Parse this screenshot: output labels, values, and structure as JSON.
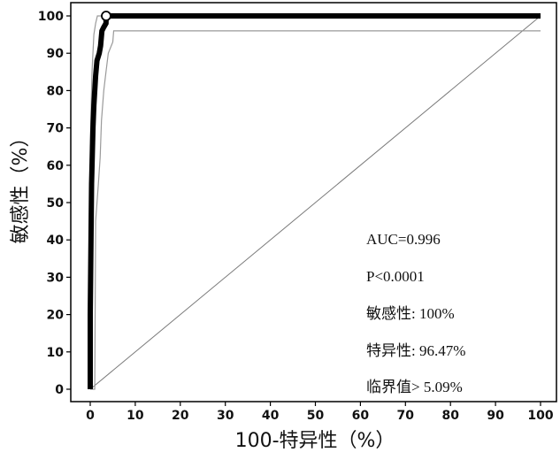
{
  "chart_data": {
    "type": "line",
    "title": "",
    "xlabel": "100-特异性（%）",
    "ylabel": "敏感性（%）",
    "xlim": [
      0,
      100
    ],
    "ylim": [
      0,
      100
    ],
    "x_ticks": [
      0,
      10,
      20,
      30,
      40,
      50,
      60,
      70,
      80,
      90,
      100
    ],
    "y_ticks": [
      0,
      10,
      20,
      30,
      40,
      50,
      60,
      70,
      80,
      90,
      100
    ],
    "grid": false,
    "series": [
      {
        "role": "roc-curve",
        "points": [
          [
            0,
            0
          ],
          [
            0,
            20
          ],
          [
            0.3,
            55
          ],
          [
            0.6,
            70
          ],
          [
            0.8,
            76
          ],
          [
            1,
            80
          ],
          [
            1.2,
            84
          ],
          [
            1.5,
            88
          ],
          [
            2,
            90
          ],
          [
            2.3,
            92
          ],
          [
            2.6,
            96
          ],
          [
            3,
            97
          ],
          [
            3.5,
            98
          ],
          [
            3.53,
            100
          ],
          [
            100,
            100
          ]
        ]
      },
      {
        "role": "ci-upper",
        "points": [
          [
            0,
            0
          ],
          [
            0,
            65
          ],
          [
            0.4,
            85
          ],
          [
            0.8,
            95
          ],
          [
            1.2,
            98
          ],
          [
            1.6,
            100
          ],
          [
            100,
            100
          ]
        ]
      },
      {
        "role": "ci-lower",
        "points": [
          [
            0,
            0
          ],
          [
            1,
            0
          ],
          [
            1.2,
            45
          ],
          [
            1.8,
            55
          ],
          [
            2.2,
            62
          ],
          [
            2.5,
            72
          ],
          [
            3,
            80
          ],
          [
            3.5,
            85
          ],
          [
            4,
            90
          ],
          [
            5,
            93
          ],
          [
            5.2,
            96
          ],
          [
            100,
            96
          ]
        ]
      },
      {
        "role": "reference-diagonal",
        "points": [
          [
            0,
            0
          ],
          [
            100,
            100
          ]
        ]
      }
    ],
    "cutoff_point": {
      "x": 3.53,
      "y": 100
    },
    "annotations": {
      "auc": "AUC=0.996",
      "p": "P<0.0001",
      "sensitivity": "敏感性: 100%",
      "specificity": "特异性: 96.47%",
      "cutoff": "临界值> 5.09%"
    }
  }
}
